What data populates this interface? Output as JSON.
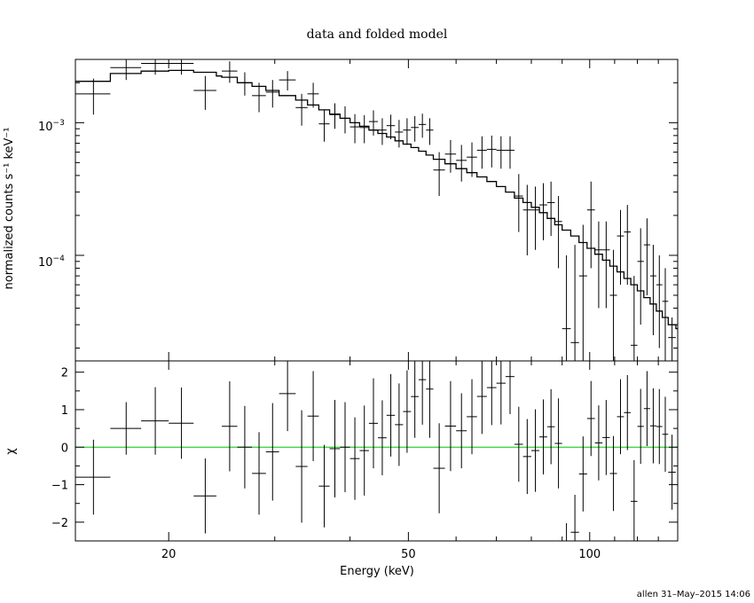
{
  "chart_data": [
    {
      "type": "scatter",
      "title": "data and folded model",
      "xlabel": "",
      "ylabel": "normalized counts s⁻¹ keV⁻¹",
      "xscale": "log",
      "yscale": "log",
      "xlim": [
        14.0,
        140.0
      ],
      "ylim": [
        1.6e-05,
        0.003
      ],
      "ytick_labels": [
        {
          "value": 0.001,
          "base": "10",
          "exp": "−3"
        },
        {
          "value": 0.0001,
          "base": "10",
          "exp": "−4"
        }
      ],
      "series": [
        {
          "kind": "data",
          "points": [
            {
              "x": 15.0,
              "xlo": 14.0,
              "xhi": 16.0,
              "y": 0.00165,
              "ylo": 0.00115,
              "yhi": 0.00215
            },
            {
              "x": 17.0,
              "xlo": 16.0,
              "xhi": 18.0,
              "y": 0.0026,
              "ylo": 0.0021,
              "yhi": 0.0031
            },
            {
              "x": 19.0,
              "xlo": 18.0,
              "xhi": 20.0,
              "y": 0.0028,
              "ylo": 0.0023,
              "yhi": 0.0033
            },
            {
              "x": 21.0,
              "xlo": 20.0,
              "xhi": 22.0,
              "y": 0.0028,
              "ylo": 0.0023,
              "yhi": 0.0033
            },
            {
              "x": 23.0,
              "xlo": 22.0,
              "xhi": 24.0,
              "y": 0.00175,
              "ylo": 0.00125,
              "yhi": 0.00225
            },
            {
              "x": 25.25,
              "xlo": 24.5,
              "xhi": 26.0,
              "y": 0.00245,
              "ylo": 0.002,
              "yhi": 0.0029
            },
            {
              "x": 26.75,
              "xlo": 26.0,
              "xhi": 27.5,
              "y": 0.002,
              "ylo": 0.0016,
              "yhi": 0.0024
            },
            {
              "x": 28.25,
              "xlo": 27.5,
              "xhi": 29.0,
              "y": 0.0016,
              "ylo": 0.0012,
              "yhi": 0.002
            },
            {
              "x": 29.75,
              "xlo": 29.0,
              "xhi": 30.5,
              "y": 0.0017,
              "ylo": 0.0013,
              "yhi": 0.0021
            },
            {
              "x": 31.5,
              "xlo": 30.5,
              "xhi": 32.5,
              "y": 0.0021,
              "ylo": 0.00175,
              "yhi": 0.00245
            },
            {
              "x": 33.25,
              "xlo": 32.5,
              "xhi": 34.0,
              "y": 0.0013,
              "ylo": 0.00095,
              "yhi": 0.00165
            },
            {
              "x": 34.75,
              "xlo": 34.0,
              "xhi": 35.5,
              "y": 0.00165,
              "ylo": 0.0013,
              "yhi": 0.002
            },
            {
              "x": 36.25,
              "xlo": 35.5,
              "xhi": 37.0,
              "y": 0.00098,
              "ylo": 0.00072,
              "yhi": 0.00124
            },
            {
              "x": 37.75,
              "xlo": 37.0,
              "xhi": 38.5,
              "y": 0.00115,
              "ylo": 0.0009,
              "yhi": 0.0014
            },
            {
              "x": 39.25,
              "xlo": 38.5,
              "xhi": 40.0,
              "y": 0.00108,
              "ylo": 0.00083,
              "yhi": 0.00133
            },
            {
              "x": 40.75,
              "xlo": 40.0,
              "xhi": 41.5,
              "y": 0.00093,
              "ylo": 0.0007,
              "yhi": 0.00116
            },
            {
              "x": 42.25,
              "xlo": 41.5,
              "xhi": 43.0,
              "y": 0.00092,
              "ylo": 0.0007,
              "yhi": 0.00114
            },
            {
              "x": 43.75,
              "xlo": 43.0,
              "xhi": 44.5,
              "y": 0.00102,
              "ylo": 0.0008,
              "yhi": 0.00124
            },
            {
              "x": 45.25,
              "xlo": 44.5,
              "xhi": 46.0,
              "y": 0.00088,
              "ylo": 0.00068,
              "yhi": 0.00108
            },
            {
              "x": 46.75,
              "xlo": 46.0,
              "xhi": 47.5,
              "y": 0.00095,
              "ylo": 0.00075,
              "yhi": 0.00115
            },
            {
              "x": 48.25,
              "xlo": 47.5,
              "xhi": 49.0,
              "y": 0.00085,
              "ylo": 0.00065,
              "yhi": 0.00105
            },
            {
              "x": 49.75,
              "xlo": 49.0,
              "xhi": 50.5,
              "y": 0.00088,
              "ylo": 0.00068,
              "yhi": 0.00108
            },
            {
              "x": 51.25,
              "xlo": 50.5,
              "xhi": 52.0,
              "y": 0.00092,
              "ylo": 0.00072,
              "yhi": 0.00112
            },
            {
              "x": 52.75,
              "xlo": 52.0,
              "xhi": 53.5,
              "y": 0.00097,
              "ylo": 0.00077,
              "yhi": 0.00117
            },
            {
              "x": 54.25,
              "xlo": 53.5,
              "xhi": 55.0,
              "y": 0.00088,
              "ylo": 0.00068,
              "yhi": 0.00108
            },
            {
              "x": 56.25,
              "xlo": 55.0,
              "xhi": 57.5,
              "y": 0.00044,
              "ylo": 0.00028,
              "yhi": 0.0006
            },
            {
              "x": 58.75,
              "xlo": 57.5,
              "xhi": 60.0,
              "y": 0.00058,
              "ylo": 0.00042,
              "yhi": 0.00074
            },
            {
              "x": 61.25,
              "xlo": 60.0,
              "xhi": 62.5,
              "y": 0.00052,
              "ylo": 0.00036,
              "yhi": 0.00068
            },
            {
              "x": 63.75,
              "xlo": 62.5,
              "xhi": 65.0,
              "y": 0.00055,
              "ylo": 0.00039,
              "yhi": 0.00071
            },
            {
              "x": 66.25,
              "xlo": 65.0,
              "xhi": 67.5,
              "y": 0.00062,
              "ylo": 0.00045,
              "yhi": 0.00079
            },
            {
              "x": 68.75,
              "xlo": 67.5,
              "xhi": 70.0,
              "y": 0.00063,
              "ylo": 0.00046,
              "yhi": 0.0008
            },
            {
              "x": 71.25,
              "xlo": 70.0,
              "xhi": 72.5,
              "y": 0.00062,
              "ylo": 0.00045,
              "yhi": 0.00079
            },
            {
              "x": 73.75,
              "xlo": 72.5,
              "xhi": 75.0,
              "y": 0.00062,
              "ylo": 0.00045,
              "yhi": 0.00079
            },
            {
              "x": 76.25,
              "xlo": 75.0,
              "xhi": 77.5,
              "y": 0.00028,
              "ylo": 0.00015,
              "yhi": 0.00041
            },
            {
              "x": 78.75,
              "xlo": 77.5,
              "xhi": 80.0,
              "y": 0.00022,
              "ylo": 0.0001,
              "yhi": 0.00034
            },
            {
              "x": 81.25,
              "xlo": 80.0,
              "xhi": 82.5,
              "y": 0.00022,
              "ylo": 0.00011,
              "yhi": 0.00033
            },
            {
              "x": 83.75,
              "xlo": 82.5,
              "xhi": 85.0,
              "y": 0.00024,
              "ylo": 0.00013,
              "yhi": 0.00035
            },
            {
              "x": 86.25,
              "xlo": 85.0,
              "xhi": 87.5,
              "y": 0.00025,
              "ylo": 0.00014,
              "yhi": 0.00036
            },
            {
              "x": 88.75,
              "xlo": 87.5,
              "xhi": 90.0,
              "y": 0.00018,
              "ylo": 8e-05,
              "yhi": 0.00028
            },
            {
              "x": 91.5,
              "xlo": 90.0,
              "xhi": 93.0,
              "y": 2.8e-05,
              "ylo": 1.6e-05,
              "yhi": 0.0001
            },
            {
              "x": 94.5,
              "xlo": 93.0,
              "xhi": 96.0,
              "y": 2.2e-05,
              "ylo": 1.6e-05,
              "yhi": 0.00012
            },
            {
              "x": 97.5,
              "xlo": 96.0,
              "xhi": 99.0,
              "y": 7e-05,
              "ylo": 1.6e-05,
              "yhi": 0.00017
            },
            {
              "x": 100.5,
              "xlo": 99.0,
              "xhi": 102.0,
              "y": 0.00022,
              "ylo": 8e-05,
              "yhi": 0.00036
            },
            {
              "x": 103.5,
              "xlo": 102.0,
              "xhi": 105.0,
              "y": 0.00011,
              "ylo": 4e-05,
              "yhi": 0.00018
            },
            {
              "x": 106.5,
              "xlo": 105.0,
              "xhi": 108.0,
              "y": 0.00011,
              "ylo": 4e-05,
              "yhi": 0.00018
            },
            {
              "x": 109.5,
              "xlo": 108.0,
              "xhi": 111.0,
              "y": 5e-05,
              "ylo": 1.6e-05,
              "yhi": 0.00011
            },
            {
              "x": 112.5,
              "xlo": 111.0,
              "xhi": 114.0,
              "y": 0.00014,
              "ylo": 6e-05,
              "yhi": 0.00022
            },
            {
              "x": 115.5,
              "xlo": 114.0,
              "xhi": 117.0,
              "y": 0.00015,
              "ylo": 6e-05,
              "yhi": 0.00024
            },
            {
              "x": 118.5,
              "xlo": 117.0,
              "xhi": 120.0,
              "y": 2.1e-05,
              "ylo": 1.6e-05,
              "yhi": 7e-05
            },
            {
              "x": 121.5,
              "xlo": 120.0,
              "xhi": 123.0,
              "y": 9e-05,
              "ylo": 3e-05,
              "yhi": 0.00016
            },
            {
              "x": 124.5,
              "xlo": 123.0,
              "xhi": 126.0,
              "y": 0.00012,
              "ylo": 5e-05,
              "yhi": 0.00019
            },
            {
              "x": 127.5,
              "xlo": 126.0,
              "xhi": 129.0,
              "y": 7e-05,
              "ylo": 2.5e-05,
              "yhi": 0.00012
            },
            {
              "x": 130.5,
              "xlo": 129.0,
              "xhi": 132.0,
              "y": 6e-05,
              "ylo": 2e-05,
              "yhi": 0.0001
            },
            {
              "x": 133.5,
              "xlo": 132.0,
              "xhi": 135.0,
              "y": 4.5e-05,
              "ylo": 1.6e-05,
              "yhi": 8e-05
            },
            {
              "x": 137.0,
              "xlo": 135.0,
              "xhi": 139.0,
              "y": 2.4e-05,
              "ylo": 1.6e-05,
              "yhi": 3.4e-05
            }
          ]
        },
        {
          "kind": "model",
          "edges": [
            14.0,
            16.0,
            18.0,
            20.0,
            22.0,
            24.0,
            24.5,
            26.0,
            27.5,
            29.0,
            30.5,
            32.5,
            34.0,
            35.5,
            37.0,
            38.5,
            40.0,
            41.5,
            43.0,
            44.5,
            46.0,
            47.5,
            49.0,
            50.5,
            52.0,
            53.5,
            55.0,
            57.5,
            60.0,
            62.5,
            65.0,
            67.5,
            70.0,
            72.5,
            75.0,
            77.5,
            80.0,
            82.5,
            85.0,
            87.5,
            90.0,
            93.0,
            96.0,
            99.0,
            102.0,
            105.0,
            108.0,
            111.0,
            114.0,
            117.0,
            120.0,
            123.0,
            126.0,
            129.0,
            132.0,
            135.0,
            139.0,
            140.0
          ],
          "values": [
            0.00205,
            0.00235,
            0.00245,
            0.00248,
            0.0024,
            0.00225,
            0.0022,
            0.002,
            0.00188,
            0.00175,
            0.0016,
            0.00148,
            0.00136,
            0.00125,
            0.00116,
            0.00108,
            0.001,
            0.00094,
            0.00088,
            0.00083,
            0.00078,
            0.00073,
            0.00069,
            0.00065,
            0.00061,
            0.00057,
            0.00053,
            0.00049,
            0.00045,
            0.00042,
            0.00039,
            0.00036,
            0.00033,
            0.0003,
            0.00027,
            0.00025,
            0.00023,
            0.00021,
            0.00019,
            0.00017,
            0.000155,
            0.00014,
            0.000125,
            0.000113,
            0.000102,
            9.2e-05,
            8.3e-05,
            7.5e-05,
            6.7e-05,
            6e-05,
            5.4e-05,
            4.8e-05,
            4.3e-05,
            3.8e-05,
            3.4e-05,
            3e-05,
            2.8e-05
          ]
        }
      ]
    },
    {
      "type": "scatter",
      "title": "",
      "xlabel": "Energy (keV)",
      "ylabel": "χ",
      "xscale": "log",
      "xlim": [
        14.0,
        140.0
      ],
      "ylim": [
        -2.5,
        2.3
      ],
      "yticks": [
        {
          "value": 2,
          "label": "2"
        },
        {
          "value": 1,
          "label": "1"
        },
        {
          "value": 0,
          "label": "0"
        },
        {
          "value": -1,
          "label": "−1"
        },
        {
          "value": -2,
          "label": "−2"
        }
      ],
      "xticks": [
        {
          "value": 20,
          "label": "20"
        },
        {
          "value": 50,
          "label": "50"
        },
        {
          "value": 100,
          "label": "100"
        }
      ],
      "reference_line": {
        "y": 0,
        "color": "#00c800"
      },
      "residual_errors": [
        1.0,
        0.7,
        0.9,
        0.95,
        1.0,
        1.2,
        1.1,
        1.1,
        1.3,
        1.0,
        1.5,
        1.2,
        1.1,
        1.3,
        1.2,
        1.1,
        1.2,
        1.2,
        1.0,
        1.1,
        1.1,
        1.1,
        1.1,
        1.2,
        1.3,
        1.2,
        1.2,
        1.0,
        1.0,
        1.0,
        1.0,
        1.1,
        1.0,
        1.0,
        1.0,
        1.1,
        1.0,
        1.0,
        1.2,
        1.0,
        1.0,
        1.0,
        1.0,
        1.0,
        1.0,
        1.0,
        1.0,
        1.0,
        1.1,
        1.0,
        1.0,
        1.0,
        1.0,
        1.0,
        1.0,
        1.0
      ]
    }
  ],
  "footer": {
    "stamp": "allen 31–May–2015 14:06"
  }
}
